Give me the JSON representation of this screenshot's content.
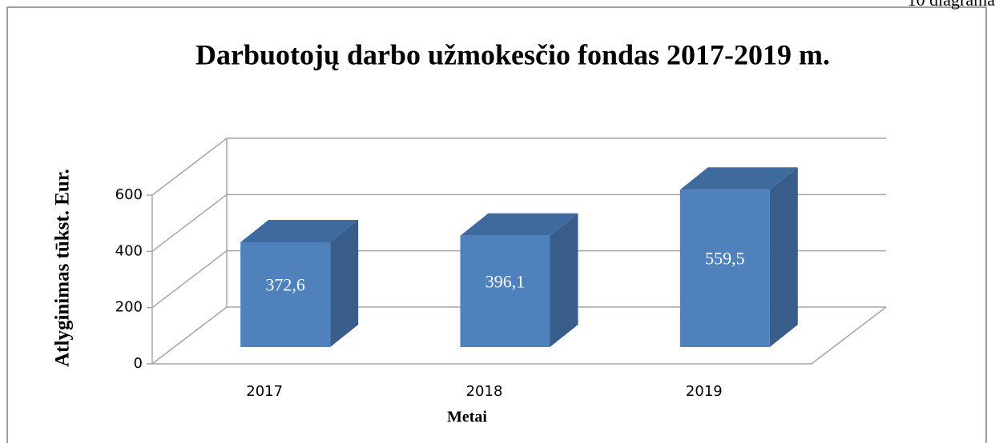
{
  "chart_data": {
    "type": "bar3d",
    "corner_note": "10 diagrama",
    "title": "Darbuotojų darbo užmokesčio fondas 2017-2019 m.",
    "x_label": "Metai",
    "y_label": "Atlyginimas tūkst. Eur.",
    "categories": [
      "2017",
      "2018",
      "2019"
    ],
    "values": [
      372.6,
      396.1,
      559.5
    ],
    "value_labels": [
      "372,6",
      "396,1",
      "559,5"
    ],
    "color": "#4f81bd",
    "ylim": [
      0,
      600
    ],
    "yticks": [
      0,
      200,
      400,
      600
    ],
    "grid": true
  }
}
